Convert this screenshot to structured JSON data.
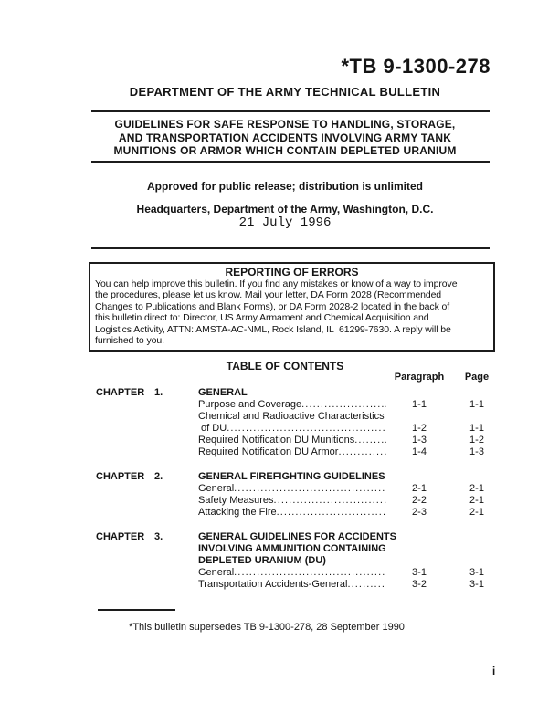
{
  "colors": {
    "ink": "#141414",
    "paper": "#ffffff",
    "rule": "#1c1c1c"
  },
  "header": {
    "doc_number": "*TB 9-1300-278",
    "org_line": "DEPARTMENT OF THE ARMY TECHNICAL BULLETIN",
    "subject_lines": [
      "GUIDELINES FOR SAFE RESPONSE TO HANDLING, STORAGE,",
      "AND TRANSPORTATION ACCIDENTS INVOLVING ARMY TANK",
      "MUNITIONS OR ARMOR WHICH CONTAIN DEPLETED URANIUM"
    ],
    "distribution_statement": "Approved for public release; distribution is unlimited",
    "headquarters": "Headquarters, Department of the Army, Washington, D.C.",
    "date": "21 July 1996"
  },
  "errors_box": {
    "title": "REPORTING OF ERRORS",
    "body_lines": [
      "You can help improve this bulletin. If you find any mistakes or know of a way to improve",
      "the procedures, please let us know. Mail your letter, DA Form 2028 (Recommended",
      "Changes to Publications and Blank Forms), or DA Form 2028-2 located in the back of",
      "this bulletin direct to: Director, US Army Armament and Chemical Acquisition and",
      "Logistics Activity, ATTN: AMSTA-AC-NML, Rock Island, IL  61299-7630. A reply will be",
      "furnished to you."
    ]
  },
  "toc": {
    "title": "TABLE OF CONTENTS",
    "paragraph_header": "Paragraph",
    "page_header": "Page",
    "chapters": [
      {
        "label": "CHAPTER",
        "number": "1.",
        "title_lines": [
          "GENERAL"
        ],
        "rows": [
          {
            "text": "Purpose and Coverage",
            "dots": true,
            "paragraph": "1-1",
            "page": "1-1"
          },
          {
            "text": "Chemical and Radioactive Characteristics",
            "dots": false,
            "paragraph": "",
            "page": ""
          },
          {
            "text": " of DU",
            "dots": true,
            "paragraph": "1-2",
            "page": "1-1"
          },
          {
            "text": "Required Notification DU Munitions",
            "dots": true,
            "paragraph": "1-3",
            "page": "1-2"
          },
          {
            "text": "Required Notification DU Armor",
            "dots": true,
            "paragraph": "1-4",
            "page": "1-3"
          }
        ]
      },
      {
        "label": "CHAPTER",
        "number": "2.",
        "title_lines": [
          "GENERAL FIREFIGHTING GUIDELINES"
        ],
        "rows": [
          {
            "text": "General",
            "dots": true,
            "paragraph": "2-1",
            "page": "2-1"
          },
          {
            "text": "Safety Measures",
            "dots": true,
            "paragraph": "2-2",
            "page": "2-1"
          },
          {
            "text": "Attacking the Fire",
            "dots": true,
            "paragraph": "2-3",
            "page": "2-1"
          }
        ]
      },
      {
        "label": "CHAPTER",
        "number": "3.",
        "title_lines": [
          "GENERAL GUIDELINES FOR ACCIDENTS",
          "INVOLVING AMMUNITION CONTAINING",
          "DEPLETED URANIUM (DU)"
        ],
        "rows": [
          {
            "text": "General",
            "dots": true,
            "paragraph": "3-1",
            "page": "3-1"
          },
          {
            "text": "Transportation Accidents-General",
            "dots": true,
            "paragraph": "3-2",
            "page": "3-1"
          }
        ]
      }
    ]
  },
  "footer": {
    "supersession_note": "*This bulletin supersedes TB 9-1300-278, 28 September 1990",
    "page_number": "i"
  }
}
